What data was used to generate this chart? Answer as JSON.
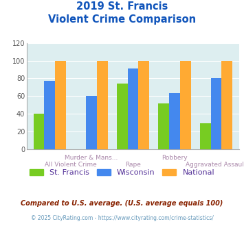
{
  "title_line1": "2019 St. Francis",
  "title_line2": "Violent Crime Comparison",
  "categories": [
    "All Violent Crime",
    "Murder & Mans...",
    "Rape",
    "Robbery",
    "Aggravated Assault"
  ],
  "st_francis": [
    40,
    0,
    74,
    52,
    29
  ],
  "wisconsin": [
    77,
    60,
    91,
    63,
    80
  ],
  "national": [
    100,
    100,
    100,
    100,
    100
  ],
  "color_sf": "#77cc22",
  "color_wi": "#4488ee",
  "color_nat": "#ffaa33",
  "ylim": [
    0,
    120
  ],
  "yticks": [
    0,
    20,
    40,
    60,
    80,
    100,
    120
  ],
  "bg_color": "#ddeef0",
  "legend_labels": [
    "St. Francis",
    "Wisconsin",
    "National"
  ],
  "footnote1": "Compared to U.S. average. (U.S. average equals 100)",
  "footnote2": "© 2025 CityRating.com - https://www.cityrating.com/crime-statistics/",
  "title_color": "#1155bb",
  "legend_color": "#553399",
  "footnote1_color": "#882200",
  "footnote2_color": "#6699bb"
}
